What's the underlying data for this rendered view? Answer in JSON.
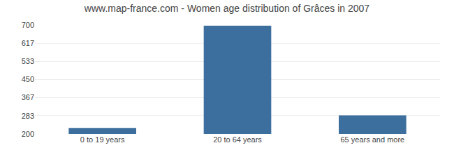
{
  "chart_data": {
    "type": "bar",
    "title": "www.map-france.com - Women age distribution of Grâces in 2007",
    "categories": [
      "0 to 19 years",
      "20 to 64 years",
      "65 years and more"
    ],
    "values": [
      228,
      697,
      285
    ],
    "color": "#3d6f9e",
    "ylim": [
      200,
      700
    ],
    "yticks": [
      200,
      283,
      367,
      450,
      533,
      617,
      700
    ],
    "grid": true
  }
}
